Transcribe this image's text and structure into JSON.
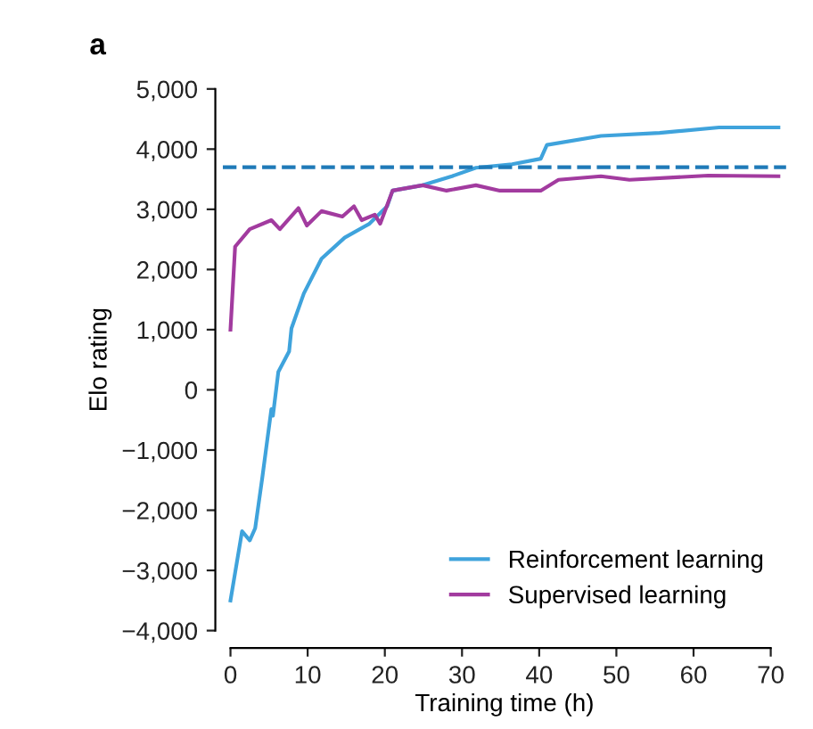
{
  "chart_data": {
    "type": "line",
    "xlabel": "Training time (h)",
    "ylabel": "Elo rating",
    "annotations": [
      "a"
    ],
    "series": [
      {
        "name": "Reinforcement learning",
        "color": "#3fa3dc",
        "x": [
          0,
          1.5,
          2.5,
          3.2,
          4.1,
          5.3,
          5.5,
          6.2,
          7.6,
          7.9,
          9.5,
          11.8,
          14.8,
          18,
          20.3,
          21,
          24.9,
          28.7,
          31.8,
          36.5,
          40.2,
          41,
          48,
          55.6,
          63.3,
          71
        ],
        "values": [
          -3500,
          -2350,
          -2500,
          -2300,
          -1480,
          -320,
          -430,
          300,
          640,
          1020,
          1600,
          2180,
          2530,
          2760,
          3050,
          3310,
          3400,
          3550,
          3690,
          3750,
          3840,
          4070,
          4220,
          4270,
          4360,
          4360
        ]
      },
      {
        "name": "Supervised learning",
        "color": "#a23b9f",
        "x": [
          0,
          0.6,
          2.5,
          5.3,
          6.4,
          8.8,
          9.9,
          11.8,
          14.5,
          16,
          17,
          18.7,
          19.4,
          21,
          24.9,
          28,
          31.8,
          34.9,
          40.2,
          42.5,
          48,
          51.7,
          61.9,
          71
        ],
        "values": [
          1000,
          2380,
          2670,
          2820,
          2670,
          3020,
          2730,
          2970,
          2880,
          3050,
          2820,
          2910,
          2760,
          3310,
          3400,
          3310,
          3400,
          3310,
          3310,
          3490,
          3550,
          3490,
          3560,
          3550
        ]
      }
    ],
    "ref_lines": [
      {
        "axis": "y",
        "value": 3700,
        "color": "#1f7ab8",
        "line_style": "dashed"
      }
    ],
    "xlim": [
      -1,
      72
    ],
    "xticks": [
      0,
      10,
      20,
      30,
      40,
      50,
      60,
      70
    ],
    "ylim": [
      -4000,
      5000
    ],
    "yticks": [
      {
        "value": -4000,
        "label": "−4,000"
      },
      {
        "value": -3000,
        "label": "−3,000"
      },
      {
        "value": -2000,
        "label": "−2,000"
      },
      {
        "value": -1000,
        "label": "−1,000"
      },
      0,
      {
        "value": 1000,
        "label": "1,000"
      },
      {
        "value": 2000,
        "label": "2,000"
      },
      {
        "value": 3000,
        "label": "3,000"
      },
      {
        "value": 4000,
        "label": "4,000"
      },
      {
        "value": 5000,
        "label": "5,000"
      }
    ],
    "legend": "bottom right",
    "grid": false,
    "marker": "none",
    "line_style": "solid"
  }
}
